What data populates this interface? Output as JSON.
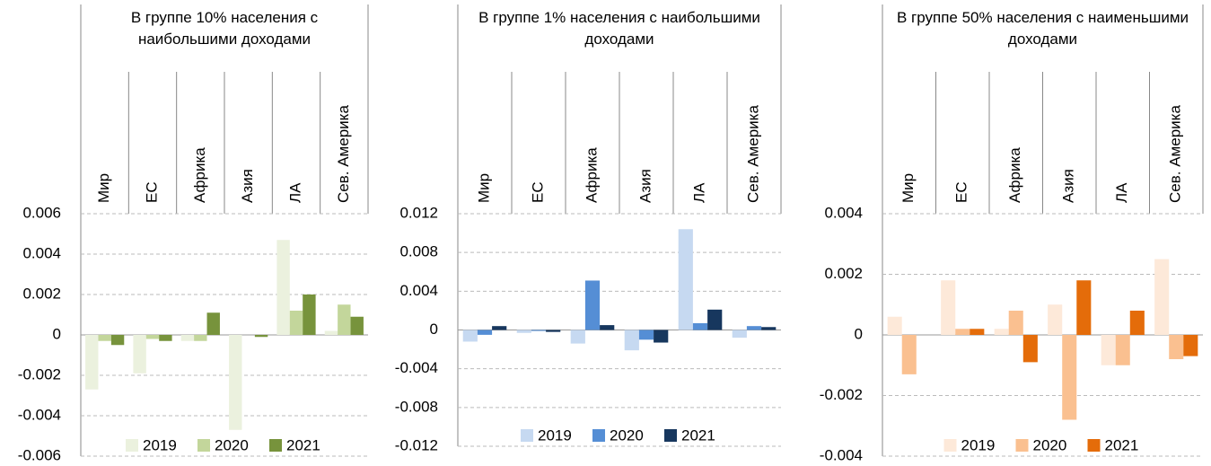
{
  "chart_data": [
    {
      "type": "bar",
      "title": "В группе 10% населения с наибольшими доходами",
      "categories": [
        "Мир",
        "ЕС",
        "Африка",
        "Азия",
        "ЛА",
        "Сев. Америка"
      ],
      "series": [
        {
          "name": "2019",
          "color": "#ebf1de",
          "values": [
            -0.0027,
            -0.0019,
            -0.0003,
            -0.0047,
            0.0047,
            0.0002
          ]
        },
        {
          "name": "2020",
          "color": "#c3d69b",
          "values": [
            -0.0003,
            -0.0002,
            -0.0003,
            0,
            0.0012,
            0.0015
          ]
        },
        {
          "name": "2021",
          "color": "#77933c",
          "values": [
            -0.0005,
            -0.0003,
            0.0011,
            -0.0001,
            0.002,
            0.0009
          ]
        }
      ],
      "ylim": [
        -0.006,
        0.006
      ],
      "yticks": [
        -0.006,
        -0.004,
        -0.002,
        0,
        0.002,
        0.004,
        0.006
      ],
      "grid": true,
      "legend": "bottom"
    },
    {
      "type": "bar",
      "title": "В группе 1% населения с наибольшими доходами",
      "categories": [
        "Мир",
        "ЕС",
        "Африка",
        "Азия",
        "ЛА",
        "Сев. Америка"
      ],
      "series": [
        {
          "name": "2019",
          "color": "#c6d9f1",
          "values": [
            -0.0012,
            -0.0003,
            -0.0014,
            -0.0021,
            0.0104,
            -0.0008
          ]
        },
        {
          "name": "2020",
          "color": "#558ed5",
          "values": [
            -0.0005,
            -0.0001,
            0.0051,
            -0.001,
            0.0007,
            0.0004
          ]
        },
        {
          "name": "2021",
          "color": "#17375e",
          "values": [
            0.0004,
            -0.0002,
            0.0005,
            -0.0013,
            0.0021,
            0.0003
          ]
        }
      ],
      "ylim": [
        -0.012,
        0.012
      ],
      "yticks": [
        -0.012,
        -0.008,
        -0.004,
        0,
        0.004,
        0.008,
        0.012
      ],
      "grid": true,
      "legend": "bottom"
    },
    {
      "type": "bar",
      "title": "В группе 50% населения с наименьшими доходами",
      "categories": [
        "Мир",
        "ЕС",
        "Африка",
        "Азия",
        "ЛА",
        "Сев. Америка"
      ],
      "series": [
        {
          "name": "2019",
          "color": "#fde9d9",
          "values": [
            0.0006,
            0.0018,
            0.0002,
            0.001,
            -0.001,
            0.0025
          ]
        },
        {
          "name": "2020",
          "color": "#fac090",
          "values": [
            -0.0013,
            0.0002,
            0.0008,
            -0.0028,
            -0.001,
            -0.0008
          ]
        },
        {
          "name": "2021",
          "color": "#e46c0a",
          "values": [
            0,
            0.0002,
            -0.0009,
            0.0018,
            0.0008,
            -0.0007
          ]
        }
      ],
      "ylim": [
        -0.004,
        0.004
      ],
      "yticks": [
        -0.004,
        -0.002,
        0,
        0.002,
        0.004
      ],
      "grid": true,
      "legend": "bottom"
    }
  ]
}
